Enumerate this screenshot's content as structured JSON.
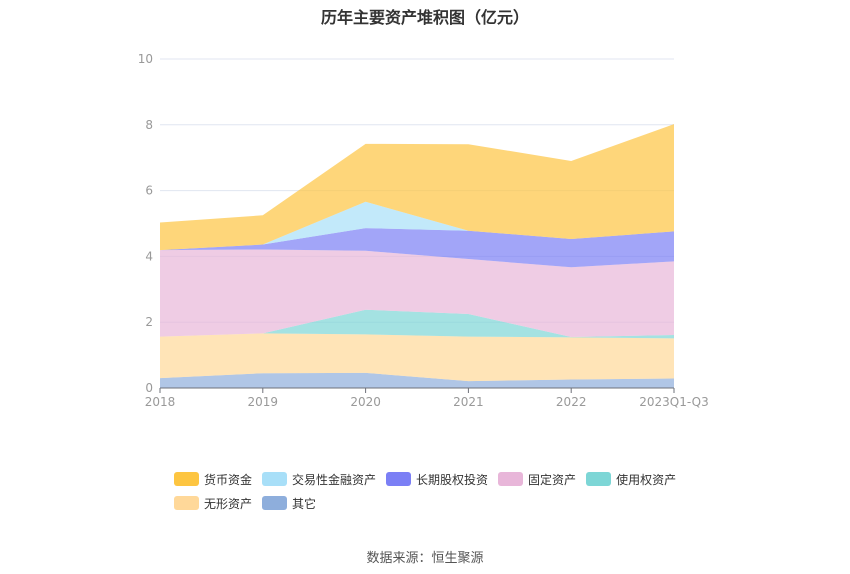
{
  "title": "历年主要资产堆积图（亿元）",
  "source": "数据来源：恒生聚源",
  "chart_data": {
    "type": "area",
    "stacked": true,
    "title": "历年主要资产堆积图（亿元）",
    "categories": [
      "2018",
      "2019",
      "2020",
      "2021",
      "2022",
      "2023Q1-Q3"
    ],
    "ylim": [
      0,
      10
    ],
    "yticks": [
      "0",
      "2",
      "4",
      "6",
      "8",
      "10"
    ],
    "grid": true,
    "legend_position": "bottom",
    "series": [
      {
        "name": "其它",
        "color": "#8eaedc",
        "values": [
          0.3,
          0.45,
          0.46,
          0.21,
          0.26,
          0.29
        ]
      },
      {
        "name": "无形资产",
        "color": "#ffd899",
        "values": [
          1.26,
          1.21,
          1.17,
          1.35,
          1.28,
          1.22
        ]
      },
      {
        "name": "使用权资产",
        "color": "#7dd6d6",
        "values": [
          0,
          0,
          0.75,
          0.69,
          0.01,
          0.1
        ]
      },
      {
        "name": "固定资产",
        "color": "#e8b6d9",
        "values": [
          2.63,
          2.55,
          1.79,
          1.67,
          2.12,
          2.24
        ]
      },
      {
        "name": "长期股权投资",
        "color": "#7b7ff5",
        "values": [
          0,
          0.15,
          0.69,
          0.86,
          0.86,
          0.91
        ]
      },
      {
        "name": "交易性金融资产",
        "color": "#a8dff8",
        "values": [
          0,
          0,
          0.8,
          0,
          0,
          0
        ]
      },
      {
        "name": "货币资金",
        "color": "#fdc541",
        "values": [
          0.84,
          0.89,
          1.76,
          2.63,
          2.37,
          3.26
        ]
      }
    ],
    "legend_order": [
      "货币资金",
      "交易性金融资产",
      "长期股权投资",
      "固定资产",
      "使用权资产",
      "无形资产",
      "其它"
    ]
  }
}
